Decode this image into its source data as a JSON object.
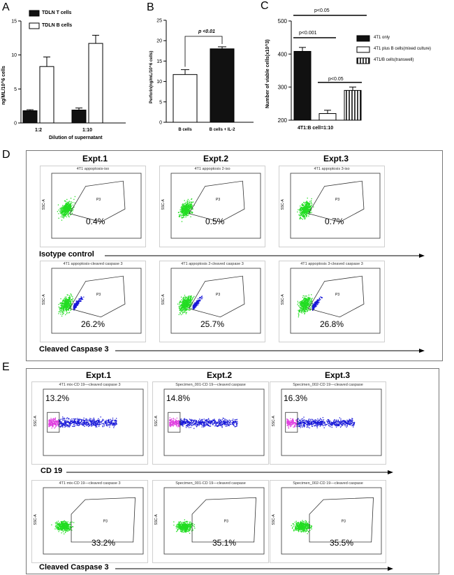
{
  "panels": {
    "A": "A",
    "B": "B",
    "C": "C",
    "D": "D",
    "E": "E"
  },
  "panelA": {
    "title": "",
    "ylabel": "ng/ML/10^6 cells",
    "xlabel": "Dilution of supernatant",
    "legend": [
      "TDLN T cells",
      "TDLN B cells"
    ]
  },
  "panelB": {
    "ylabel": "Perforin(ng/mL/10^6 cells)",
    "pvalue": "p <0.01"
  },
  "panelC": {
    "ylabel": "Number of viable cells(x10^3)",
    "xlabel": "4T1:B cell=1:10",
    "pvalues": [
      "p<0.05",
      "p<0.001",
      "p<0.05"
    ],
    "legend": [
      "4T1 only",
      "4T1 plus B cells(mixed culture)",
      "4T1/B cells(transwell)"
    ]
  },
  "chart_data": [
    {
      "type": "bar",
      "categories": [
        "1:2",
        "1:10"
      ],
      "series": [
        {
          "name": "TDLN T cells",
          "values": [
            1.8,
            1.9
          ],
          "errors": [
            0.15,
            0.3
          ]
        },
        {
          "name": "TDLN B cells",
          "values": [
            8.3,
            11.7
          ],
          "errors": [
            1.4,
            1.2
          ]
        }
      ],
      "ylim": [
        0,
        15
      ],
      "yticks": [
        "0",
        "5",
        "10",
        "15"
      ],
      "xlabel": "Dilution of supernatant",
      "ylabel": "ng/ML/10^6 cells"
    },
    {
      "type": "bar",
      "categories": [
        "B cells",
        "B cells + IL-2"
      ],
      "values": [
        11.7,
        18.0
      ],
      "errors": [
        1.2,
        0.5
      ],
      "ylim": [
        0,
        25
      ],
      "yticks": [
        "0",
        "5",
        "10",
        "15",
        "20",
        "25"
      ],
      "ylabel": "Perforin(ng/mL/10^6 cells)"
    },
    {
      "type": "bar",
      "categories": [
        "4T1 only",
        "4T1 plus B cells(mixed culture)",
        "4T1/B cells(transwell)"
      ],
      "values": [
        408,
        220,
        290
      ],
      "errors": [
        12,
        10,
        10
      ],
      "ylim": [
        200,
        500
      ],
      "yticks": [
        "200",
        "300",
        "400",
        "500"
      ],
      "xlabel": "4T1:B cell=1:10",
      "ylabel": "Number of viable cells(x10^3)"
    }
  ],
  "panelD": {
    "experiments": [
      "Expt.1",
      "Expt.2",
      "Expt.3"
    ],
    "row1": {
      "titles": [
        "4T1 appoptosis-iso",
        "4T1 appoptosis 2-iso",
        "4T1 appoptosis 3-iso"
      ],
      "percents": [
        "0.4%",
        "0.5%",
        "0.7%"
      ],
      "label": "Isotype control"
    },
    "row2": {
      "titles": [
        "4T1 appoptosis-cleaved caspase 3",
        "4T1 appoptosis 2-cleaved caspase 3",
        "4T1 appoptosis 3-cleaved caspase 3"
      ],
      "percents": [
        "26.2%",
        "25.7%",
        "26.8%"
      ],
      "label": "Cleaved Caspase 3"
    },
    "gate": "P3",
    "yaxis": "SSC-A"
  },
  "panelE": {
    "experiments": [
      "Expt.1",
      "Expt.2",
      "Expt.3"
    ],
    "row1": {
      "titles": [
        "4T1 mix-CD 19—cleaved caspase 3",
        "Specimen_001-CD 19—cleaved caspase",
        "Specimen_002-CD 19—cleaved caspase"
      ],
      "percents": [
        "13.2%",
        "14.8%",
        "16.3%"
      ],
      "label": "CD 19"
    },
    "row2": {
      "titles": [
        "4T1 mix-CD 19—cleaved caspase 3",
        "Specimen_001-CD 19—cleaved caspase",
        "Specimen_002-CD 19—cleaved caspase"
      ],
      "percents": [
        "33.2%",
        "35.1%",
        "35.5%"
      ],
      "label": "Cleaved Caspase 3"
    },
    "gate": "P3",
    "yaxis": "SSC-A"
  }
}
